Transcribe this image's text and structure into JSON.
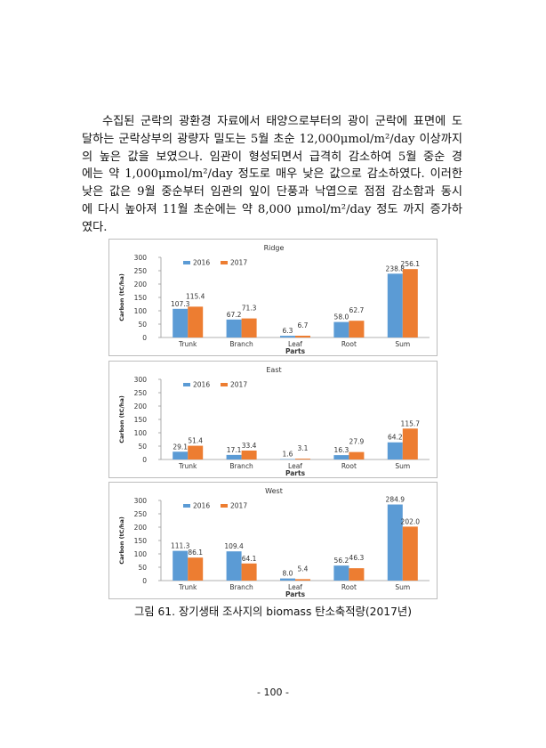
{
  "paragraph": {
    "lines": [
      "수집된 군락의 광환경 자료에서 태양으로부터의 광이 군락에 표면에 도",
      "달하는 군락상부의 광량자 밀도는 5월 초순 12,000μmol/m²/day 이상까지",
      "의 높은 값을 보였으나. 임관이 형성되면서 급격히 감소하여 5월 중순 경",
      "에는 약 1,000μmol/m²/day 정도로 매우 낮은 값으로 감소하였다. 이러한",
      "낮은 값은 9월 중순부터 임관의 잎이 단풍과 낙엽으로 점점 감소함과 동시",
      "에 다시 높아져 11월 초순에는 약 8,000 μmol/m²/day 정도 까지 증가하",
      "였다."
    ]
  },
  "colors": {
    "s2016": "#5b9bd5",
    "s2017": "#ed7d31"
  },
  "chart_data": [
    {
      "type": "bar",
      "title": "Ridge",
      "xlabel": "Parts",
      "ylabel": "Carbon (tC/ha)",
      "ylim": [
        0,
        300
      ],
      "yticks": [
        "0",
        "50",
        "100",
        "150",
        "200",
        "250",
        "300"
      ],
      "categories": [
        "Trunk",
        "Branch",
        "Leaf",
        "Root",
        "Sum"
      ],
      "legend_position": "top-left",
      "series": [
        {
          "name": "2016",
          "values": [
            107.3,
            67.2,
            6.3,
            58.0,
            238.8
          ],
          "labels": [
            "107.3",
            "67.2",
            "6.3",
            "58.0",
            "238.8"
          ]
        },
        {
          "name": "2017",
          "values": [
            115.4,
            71.3,
            6.7,
            62.7,
            256.1
          ],
          "labels": [
            "115.4",
            "71.3",
            "6.7",
            "62.7",
            "256.1"
          ]
        }
      ]
    },
    {
      "type": "bar",
      "title": "East",
      "xlabel": "Parts",
      "ylabel": "Carbon (tC/ha)",
      "ylim": [
        0,
        300
      ],
      "yticks": [
        "0",
        "50",
        "100",
        "150",
        "200",
        "250",
        "300"
      ],
      "categories": [
        "Trunk",
        "Branch",
        "Leaf",
        "Root",
        "Sum"
      ],
      "legend_position": "top-left",
      "series": [
        {
          "name": "2016",
          "values": [
            29.1,
            17.1,
            1.6,
            16.3,
            64.2
          ],
          "labels": [
            "29.1",
            "17.1",
            "1.6",
            "16.3",
            "64.2"
          ]
        },
        {
          "name": "2017",
          "values": [
            51.4,
            33.4,
            3.1,
            27.9,
            115.7
          ],
          "labels": [
            "51.4",
            "33.4",
            "3.1",
            "27.9",
            "115.7"
          ]
        }
      ]
    },
    {
      "type": "bar",
      "title": "West",
      "xlabel": "Parts",
      "ylabel": "Carbon (tC/ha)",
      "ylim": [
        0,
        300
      ],
      "yticks": [
        "0",
        "50",
        "100",
        "150",
        "200",
        "250",
        "300"
      ],
      "categories": [
        "Trunk",
        "Branch",
        "Leaf",
        "Root",
        "Sum"
      ],
      "legend_position": "top-left",
      "series": [
        {
          "name": "2016",
          "values": [
            111.3,
            109.4,
            8.0,
            56.2,
            284.9
          ],
          "labels": [
            "111.3",
            "109.4",
            "8.0",
            "56.2",
            "284.9"
          ]
        },
        {
          "name": "2017",
          "values": [
            86.1,
            64.1,
            5.4,
            46.3,
            202.0
          ],
          "labels": [
            "86.1",
            "64.1",
            "5.4",
            "46.3",
            "202.0"
          ]
        }
      ]
    }
  ],
  "caption": "그림 61. 장기생태 조사지의 biomass 탄소축적량(2017년)",
  "page_number": "- 100 -"
}
